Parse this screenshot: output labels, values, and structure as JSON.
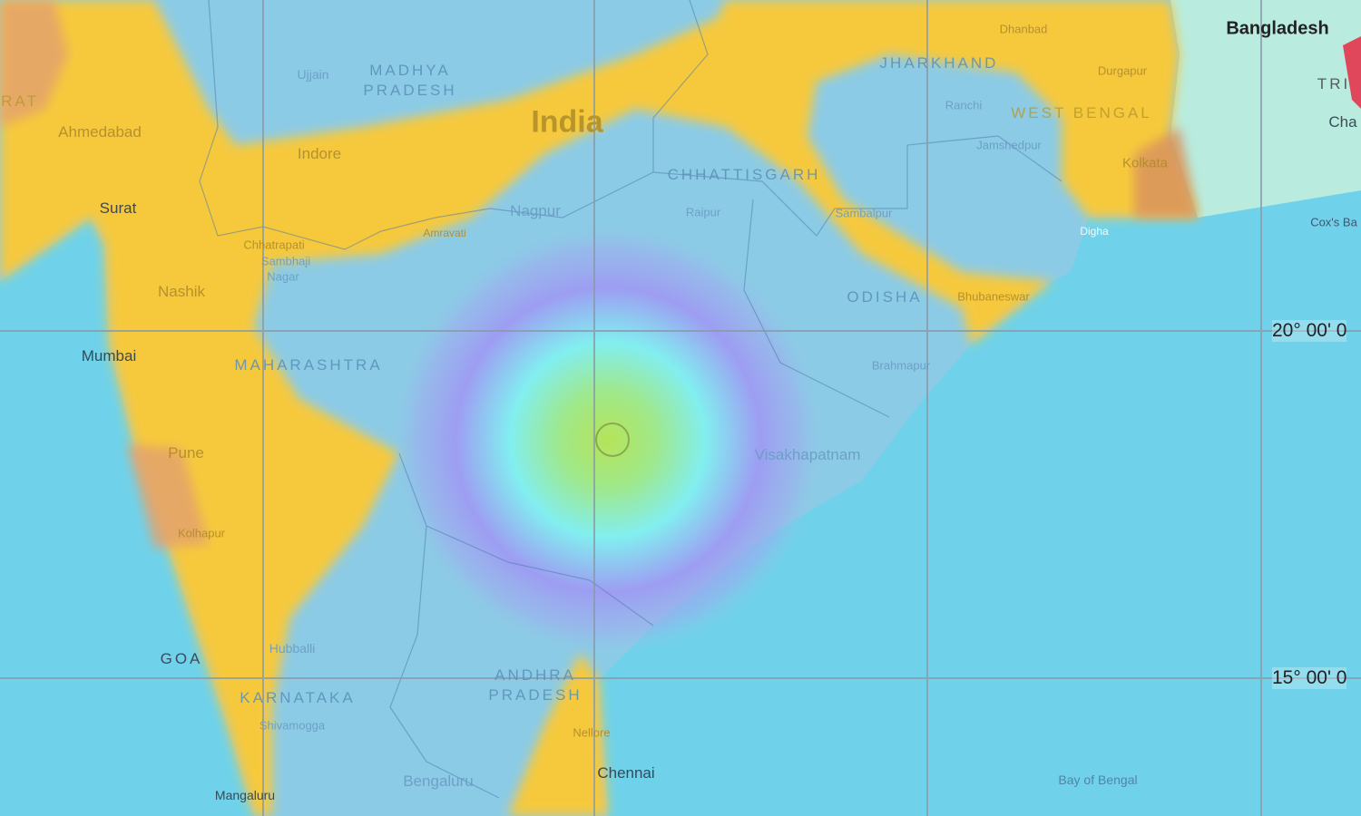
{
  "map": {
    "colors": {
      "ocean": "#6fd2ea",
      "land": "#8ccbe6",
      "yellow": "#f6c93c",
      "orange": "#e3a070",
      "red": "#e0475a",
      "bangladesh": "#b9ecdf",
      "epicenter": "#b6e45a"
    },
    "country_labels": {
      "india": "India",
      "bangladesh": "Bangladesh"
    },
    "state_labels": {
      "madhya_pradesh_1": "MADHYA",
      "madhya_pradesh_2": "PRADESH",
      "jharkhand": "JHARKHAND",
      "west_bengal": "WEST BENGAL",
      "chhattisgarh": "CHHATTISGARH",
      "odisha": "ODISHA",
      "maharashtra": "MAHARASHTRA",
      "karnataka": "KARNATAKA",
      "andhra_1": "ANDHRA",
      "andhra_2": "PRADESH",
      "goa": "GOA",
      "gujarat": "RAT",
      "tripura": "TRI"
    },
    "city_labels": {
      "ahmedabad": "Ahmedabad",
      "surat": "Surat",
      "nashik": "Nashik",
      "mumbai": "Mumbai",
      "pune": "Pune",
      "kolhapur": "Kolhapur",
      "hubballi": "Hubballi",
      "shivamogga": "Shivamogga",
      "mangaluru": "Mangaluru",
      "bengaluru": "Bengaluru",
      "chennai": "Chennai",
      "nellore": "Nellore",
      "ujjain": "Ujjain",
      "indore": "Indore",
      "nagpur": "Nagpur",
      "raipur": "Raipur",
      "ranchi": "Ranchi",
      "jamshedpur": "Jamshedpur",
      "dhanbad": "Dhanbad",
      "durgapur": "Durgapur",
      "kolkata": "Kolkata",
      "digha": "Digha",
      "sambalpur": "Sambalpur",
      "bhubaneswar": "Bhubaneswar",
      "brahmapur": "Brahmapur",
      "visakhapatnam": "Visakhapatnam",
      "chhatrapati_1": "Chhatrapati",
      "chhatrapati_2": "Sambhaji",
      "chhatrapati_3": "Nagar",
      "amravati": "Amravati",
      "coxs_bazar": "Cox's Ba",
      "chattogram": "Cha"
    },
    "sea_labels": {
      "bay_of_bengal": "Bay of Bengal"
    },
    "grid_labels": {
      "lat_20": "20° 00' 0",
      "lat_15": "15° 00' 0"
    }
  }
}
